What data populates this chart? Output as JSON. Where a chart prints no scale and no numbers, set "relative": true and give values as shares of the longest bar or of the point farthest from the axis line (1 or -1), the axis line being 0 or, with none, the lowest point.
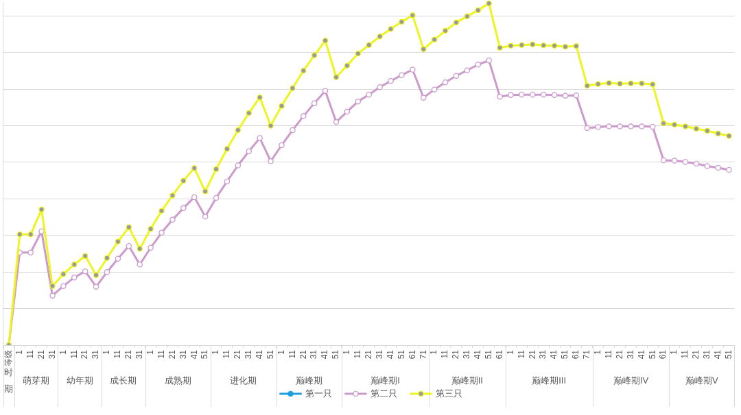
{
  "chart_data": {
    "type": "line",
    "categories": [
      "等级",
      "1",
      "11",
      "21",
      "31",
      "1",
      "11",
      "21",
      "31",
      "1",
      "11",
      "21",
      "31",
      "1",
      "11",
      "21",
      "31",
      "41",
      "51",
      "1",
      "11",
      "21",
      "31",
      "41",
      "51",
      "1",
      "11",
      "21",
      "31",
      "41",
      "51",
      "1",
      "11",
      "21",
      "31",
      "41",
      "51",
      "61",
      "71",
      "1",
      "11",
      "21",
      "31",
      "41",
      "51",
      "61",
      "1",
      "11",
      "21",
      "31",
      "41",
      "51",
      "61",
      "71",
      "1",
      "11",
      "21",
      "31",
      "41",
      "51",
      "61",
      "1",
      "11",
      "21",
      "31",
      "41",
      "51"
    ],
    "series": [
      {
        "name": "第一只",
        "color": "#1f9ee0",
        "values": [
          null,
          null,
          null,
          null,
          null,
          null,
          null,
          null,
          null,
          null,
          null,
          null,
          null,
          null,
          null,
          null,
          null,
          null,
          null,
          null,
          null,
          null,
          null,
          null,
          null,
          null,
          null,
          null,
          null,
          null,
          null,
          null,
          null,
          null,
          null,
          null,
          null,
          null,
          null,
          null,
          null,
          null,
          null,
          null,
          null,
          null,
          null,
          null,
          null,
          null,
          null,
          null,
          null,
          null,
          null,
          null,
          null,
          null,
          null,
          null,
          null,
          null,
          null,
          null,
          null,
          null,
          null
        ]
      },
      {
        "name": "第二只",
        "color": "#cc9acc",
        "values": [
          0,
          0.271,
          0.271,
          0.333,
          0.145,
          0.173,
          0.198,
          0.216,
          0.171,
          0.214,
          0.253,
          0.29,
          0.236,
          0.285,
          0.329,
          0.367,
          0.401,
          0.433,
          0.376,
          0.431,
          0.479,
          0.526,
          0.567,
          0.606,
          0.538,
          0.585,
          0.629,
          0.67,
          0.708,
          0.744,
          0.653,
          0.683,
          0.713,
          0.733,
          0.755,
          0.773,
          0.79,
          0.806,
          0.724,
          0.748,
          0.769,
          0.788,
          0.804,
          0.821,
          0.833,
          0.727,
          0.732,
          0.733,
          0.733,
          0.733,
          0.732,
          0.73,
          0.731,
          0.635,
          0.638,
          0.64,
          0.64,
          0.64,
          0.64,
          0.639,
          0.541,
          0.54,
          0.536,
          0.531,
          0.524,
          0.519,
          0.513
        ]
      },
      {
        "name": "第三只",
        "color": "#eef51e",
        "values": [
          0,
          0.324,
          0.324,
          0.397,
          0.173,
          0.208,
          0.236,
          0.261,
          0.205,
          0.255,
          0.303,
          0.345,
          0.282,
          0.34,
          0.393,
          0.438,
          0.481,
          0.518,
          0.45,
          0.515,
          0.574,
          0.629,
          0.679,
          0.725,
          0.642,
          0.7,
          0.752,
          0.803,
          0.848,
          0.891,
          0.784,
          0.818,
          0.853,
          0.878,
          0.903,
          0.925,
          0.946,
          0.965,
          0.866,
          0.894,
          0.92,
          0.944,
          0.962,
          0.98,
          1,
          0.87,
          0.876,
          0.878,
          0.88,
          0.877,
          0.876,
          0.873,
          0.875,
          0.759,
          0.764,
          0.767,
          0.765,
          0.766,
          0.766,
          0.763,
          0.649,
          0.645,
          0.64,
          0.633,
          0.627,
          0.619,
          0.612
        ]
      }
    ],
    "relative": true,
    "annotations": [
      "时期",
      "萌芽期",
      "幼年期",
      "成长期",
      "成熟期",
      "进化期",
      "巅峰期",
      "巅峰期I",
      "巅峰期II",
      "巅峰期III",
      "巅峰期IV",
      "巅峰期V"
    ],
    "grid": "y",
    "legend": "bottom",
    "marker": "circle",
    "line_style": "solid"
  }
}
